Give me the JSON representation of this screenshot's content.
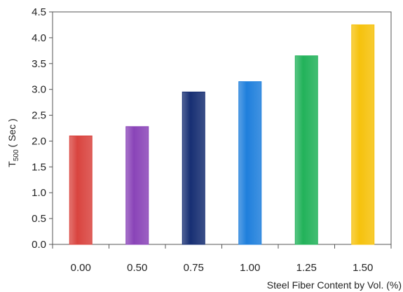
{
  "chart_data": {
    "type": "bar",
    "categories": [
      "0.00",
      "0.50",
      "0.75",
      "1.00",
      "1.25",
      "1.50"
    ],
    "values": [
      2.1,
      2.28,
      2.95,
      3.15,
      3.65,
      4.25
    ],
    "colors": [
      "#d9443f",
      "#8a44b8",
      "#172f73",
      "#1f7fdc",
      "#22b25a",
      "#f6c20d"
    ],
    "ylim": [
      0,
      4.5
    ],
    "yticks": [
      "0.0",
      "0.5",
      "1.0",
      "1.5",
      "2.0",
      "2.5",
      "3.0",
      "3.5",
      "4.0",
      "4.5"
    ],
    "ylabel_main": "T",
    "ylabel_sub": "500",
    "ylabel_unit": "( Sec )",
    "xlabel": "Steel Fiber Content by Vol. (%)",
    "grid": false,
    "legend": "none"
  }
}
